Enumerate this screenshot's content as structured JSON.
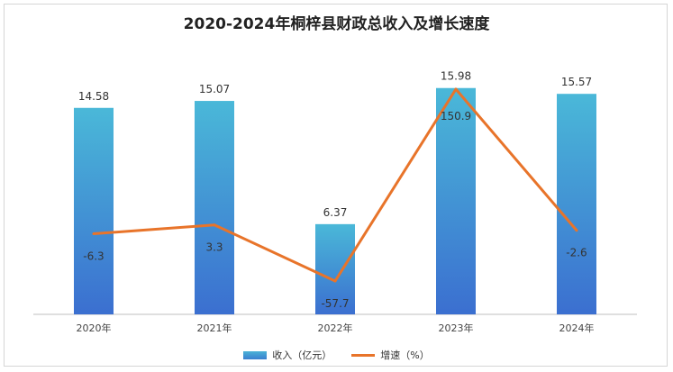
{
  "chart_data": {
    "type": "bar",
    "title": "2020-2024年桐梓县财政总收入及增长速度",
    "categories": [
      "2020年",
      "2021年",
      "2022年",
      "2023年",
      "2024年"
    ],
    "series": [
      {
        "name": "收入（亿元）",
        "type": "bar",
        "values": [
          14.58,
          15.07,
          6.37,
          15.98,
          15.57
        ],
        "color": "#3fa6d8"
      },
      {
        "name": "增速（%）",
        "type": "line",
        "values": [
          -6.3,
          3.3,
          -57.7,
          150.9,
          -2.6
        ],
        "color": "#e8742a"
      }
    ],
    "legend_position": "bottom",
    "grid": false
  }
}
